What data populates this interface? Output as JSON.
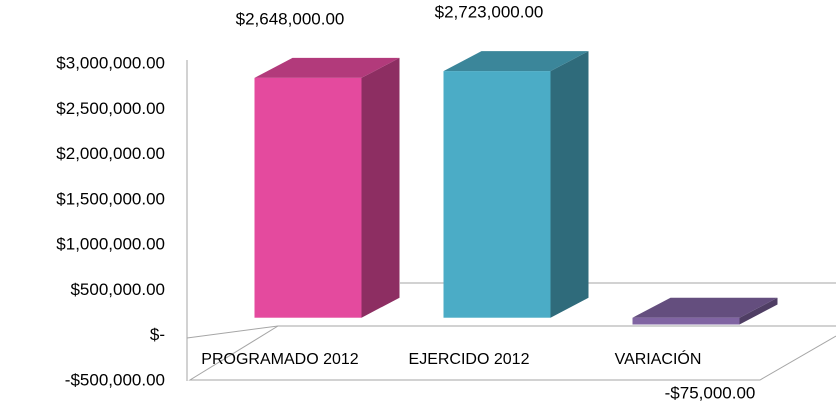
{
  "chart_data": {
    "type": "bar3d",
    "categories": [
      "PROGRAMADO 2012",
      "EJERCIDO 2012",
      "VARIACIÓN"
    ],
    "values": [
      2648000,
      2723000,
      -75000
    ],
    "value_labels": [
      "$2,648,000.00",
      "$2,723,000.00",
      "-$75,000.00"
    ],
    "colors": [
      "#e44a9e",
      "#4bacc6",
      "#8064a2"
    ],
    "ylim": [
      -500000,
      3000000
    ],
    "yticks": [
      {
        "value": -500000,
        "label": "-$500,000.00"
      },
      {
        "value": 0,
        "label": "$-"
      },
      {
        "value": 500000,
        "label": "$500,000.00"
      },
      {
        "value": 1000000,
        "label": "$1,000,000.00"
      },
      {
        "value": 1500000,
        "label": "$1,500,000.00"
      },
      {
        "value": 2000000,
        "label": "$2,000,000.00"
      },
      {
        "value": 2500000,
        "label": "$2,500,000.00"
      },
      {
        "value": 3000000,
        "label": "$3,000,000.00"
      }
    ]
  }
}
